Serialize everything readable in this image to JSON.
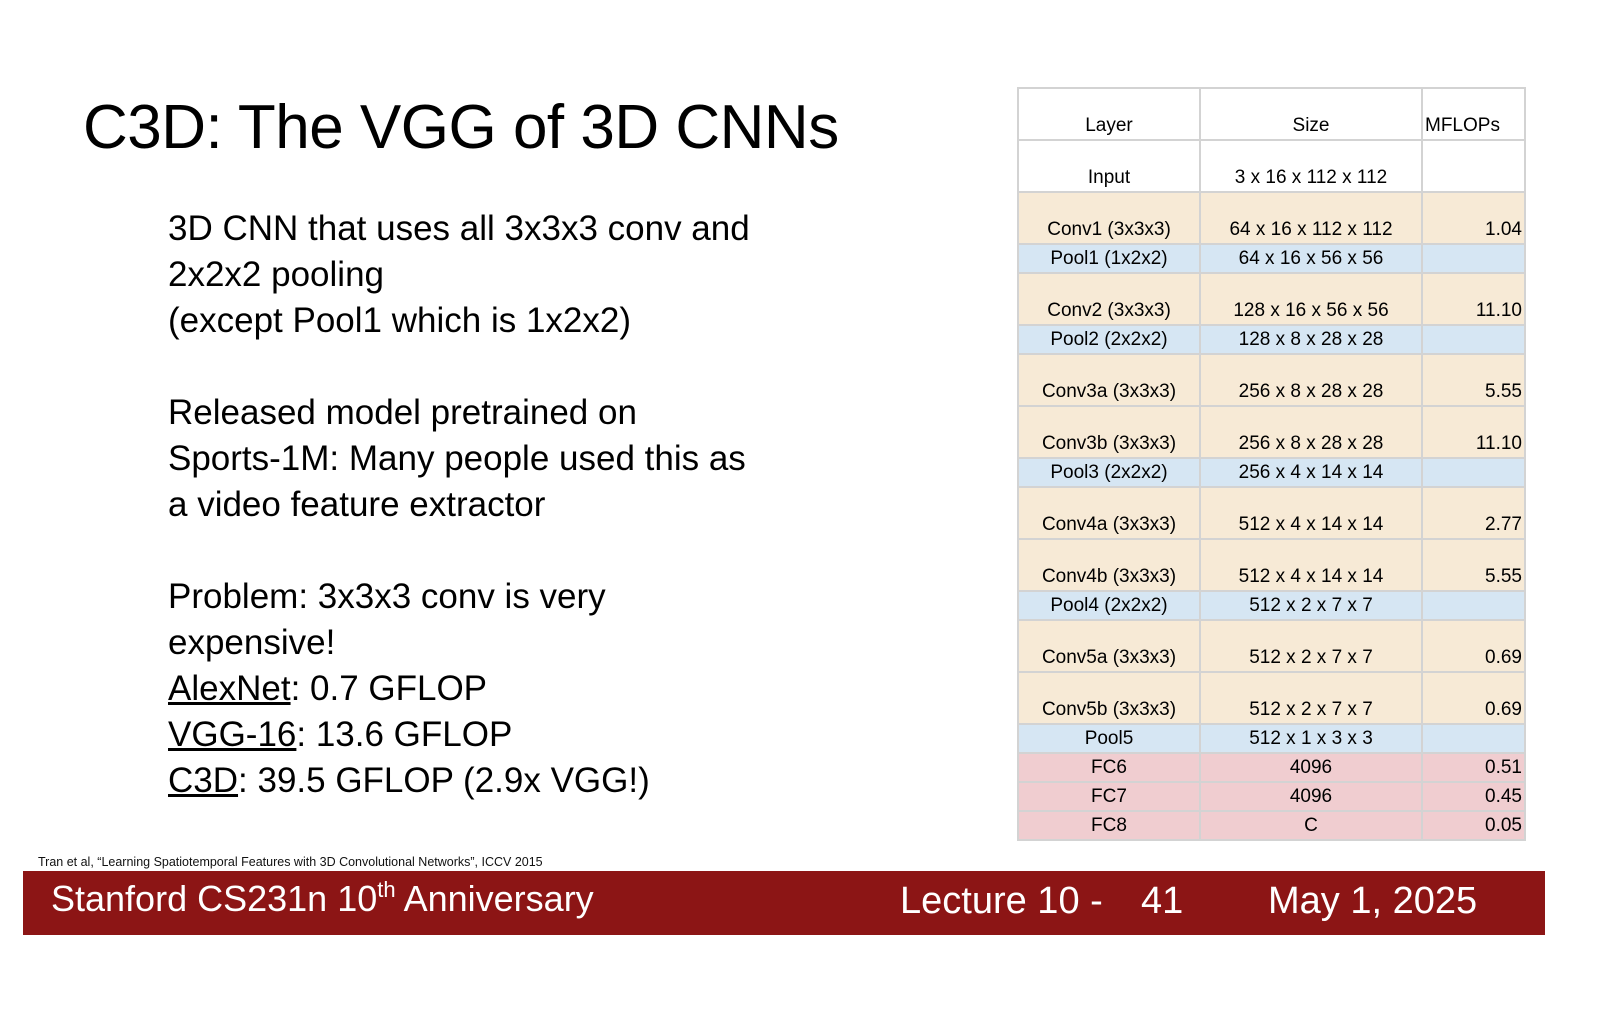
{
  "slide": {
    "title": "C3D: The VGG of 3D CNNs",
    "paragraphs": [
      {
        "lines": [
          "3D CNN that uses all 3x3x3 conv and",
          "2x2x2 pooling",
          "(except Pool1 which is 1x2x2)"
        ]
      },
      {
        "lines": [
          "Released model pretrained on",
          "Sports-1M: Many people used this as",
          "a video feature extractor"
        ]
      }
    ],
    "problem": {
      "lines": [
        "Problem: 3x3x3 conv is very",
        "expensive!"
      ],
      "comparisons": [
        {
          "name": "AlexNet",
          "value": ": 0.7 GFLOP"
        },
        {
          "name": "VGG-16",
          "value": ": 13.6 GFLOP"
        },
        {
          "name": "C3D",
          "value": ": 39.5 GFLOP (2.9x VGG!)"
        }
      ]
    },
    "citation": "Tran et al, “Learning Spatiotemporal Features with 3D Convolutional Networks”, ICCV 2015"
  },
  "table": {
    "headers": {
      "layer": "Layer",
      "size": "Size",
      "mflops": "MFLOPs"
    },
    "rows": [
      {
        "layer": "Input",
        "size": "3 x 16 x 112 x 112",
        "mflops": "",
        "kind": "white",
        "height": "tall"
      },
      {
        "layer": "Conv1 (3x3x3)",
        "size": "64 x 16 x 112 x 112",
        "mflops": "1.04",
        "kind": "conv",
        "height": "tall"
      },
      {
        "layer": "Pool1 (1x2x2)",
        "size": "64 x 16 x 56 x 56",
        "mflops": "",
        "kind": "pool",
        "height": "short"
      },
      {
        "layer": "Conv2 (3x3x3)",
        "size": "128 x 16 x 56 x 56",
        "mflops": "11.10",
        "kind": "conv",
        "height": "tall"
      },
      {
        "layer": "Pool2 (2x2x2)",
        "size": "128 x 8 x 28 x 28",
        "mflops": "",
        "kind": "pool",
        "height": "short"
      },
      {
        "layer": "Conv3a (3x3x3)",
        "size": "256 x 8 x 28 x 28",
        "mflops": "5.55",
        "kind": "conv",
        "height": "tall"
      },
      {
        "layer": "Conv3b (3x3x3)",
        "size": "256 x 8 x 28 x 28",
        "mflops": "11.10",
        "kind": "conv",
        "height": "tall"
      },
      {
        "layer": "Pool3 (2x2x2)",
        "size": "256 x 4 x 14 x 14",
        "mflops": "",
        "kind": "pool",
        "height": "short"
      },
      {
        "layer": "Conv4a (3x3x3)",
        "size": "512 x 4 x 14 x 14",
        "mflops": "2.77",
        "kind": "conv",
        "height": "tall"
      },
      {
        "layer": "Conv4b (3x3x3)",
        "size": "512 x 4 x 14 x 14",
        "mflops": "5.55",
        "kind": "conv",
        "height": "tall"
      },
      {
        "layer": "Pool4 (2x2x2)",
        "size": "512 x 2 x 7 x 7",
        "mflops": "",
        "kind": "pool",
        "height": "short"
      },
      {
        "layer": "Conv5a (3x3x3)",
        "size": "512 x 2 x 7 x 7",
        "mflops": "0.69",
        "kind": "conv",
        "height": "tall"
      },
      {
        "layer": "Conv5b (3x3x3)",
        "size": "512 x 2 x 7 x 7",
        "mflops": "0.69",
        "kind": "conv",
        "height": "tall"
      },
      {
        "layer": "Pool5",
        "size": "512 x 1 x 3 x 3",
        "mflops": "",
        "kind": "pool",
        "height": "short"
      },
      {
        "layer": "FC6",
        "size": "4096",
        "mflops": "0.51",
        "kind": "fc",
        "height": "short"
      },
      {
        "layer": "FC7",
        "size": "4096",
        "mflops": "0.45",
        "kind": "fc",
        "height": "short"
      },
      {
        "layer": "FC8",
        "size": "C",
        "mflops": "0.05",
        "kind": "fc",
        "height": "short"
      }
    ]
  },
  "footer": {
    "course": "Stanford CS231n 10",
    "course_sup": "th",
    "course_suffix": " Anniversary",
    "lecture": "Lecture 10 -",
    "page": "41",
    "date": "May 1, 2025"
  },
  "colors": {
    "footer_bg": "#8c1515",
    "conv_row": "#f7ead6",
    "pool_row": "#d6e6f3",
    "fc_row": "#f0cdd0"
  }
}
